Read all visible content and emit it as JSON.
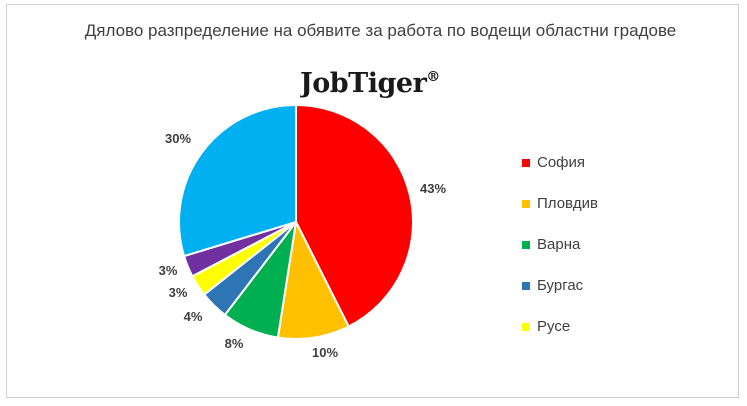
{
  "chart_data": {
    "type": "pie",
    "title": "Дялово разпределение на обявите за работа по водещи областни градове",
    "categories": [
      "София",
      "Пловдив",
      "Варна",
      "Бургас",
      "Русе",
      "",
      ""
    ],
    "values": [
      43,
      10,
      8,
      4,
      3,
      3,
      30
    ],
    "labels": [
      "43%",
      "10%",
      "8%",
      "4%",
      "3%",
      "3%",
      "30%"
    ],
    "colors": [
      "#ff0000",
      "#ffc000",
      "#00b050",
      "#2e75b6",
      "#ffff00",
      "#7030a0",
      "#00b0f0"
    ],
    "legend": {
      "position": "right",
      "entries": [
        "София",
        "Пловдив",
        "Варна",
        "Бургас",
        "Русе"
      ]
    }
  },
  "logo": {
    "text": "JobTiger",
    "mark": "®"
  }
}
